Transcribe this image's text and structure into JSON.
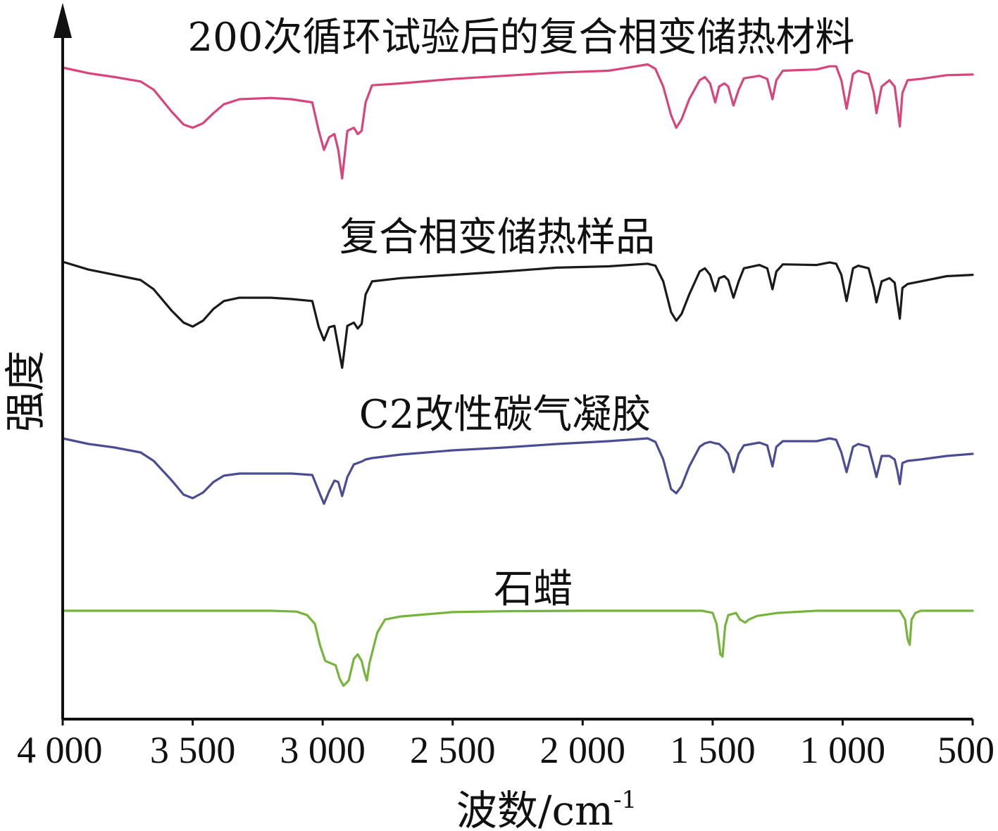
{
  "chart_data": {
    "type": "line",
    "title": "",
    "xlabel": "波数/cm",
    "xlabel_sup": "-1",
    "ylabel": "强度",
    "xlim": [
      4000,
      500
    ],
    "x_reversed": true,
    "xticks": [
      {
        "value": 4000,
        "label": "4 000"
      },
      {
        "value": 3500,
        "label": "3 500"
      },
      {
        "value": 3000,
        "label": "3 000"
      },
      {
        "value": 2500,
        "label": "2 500"
      },
      {
        "value": 2000,
        "label": "2 000"
      },
      {
        "value": 1500,
        "label": "1 500"
      },
      {
        "value": 1000,
        "label": "1 000"
      },
      {
        "value": 500,
        "label": "500"
      }
    ],
    "y_ticks_shown": false,
    "grid": false,
    "legend": "none",
    "series": [
      {
        "name": "200次循环试验后的复合相变储热材料",
        "color": "#d9447a",
        "points": [
          [
            4000,
            0
          ],
          [
            3900,
            -0.09
          ],
          [
            3800,
            -0.15
          ],
          [
            3700,
            -0.22
          ],
          [
            3650,
            -0.35
          ],
          [
            3580,
            -0.7
          ],
          [
            3535,
            -0.9
          ],
          [
            3500,
            -0.95
          ],
          [
            3460,
            -0.88
          ],
          [
            3420,
            -0.72
          ],
          [
            3380,
            -0.58
          ],
          [
            3320,
            -0.5
          ],
          [
            3200,
            -0.48
          ],
          [
            3120,
            -0.5
          ],
          [
            3040,
            -0.55
          ],
          [
            3015,
            -1.0
          ],
          [
            2995,
            -1.3
          ],
          [
            2975,
            -1.1
          ],
          [
            2955,
            -1.05
          ],
          [
            2940,
            -1.3
          ],
          [
            2925,
            -1.75
          ],
          [
            2905,
            -1.0
          ],
          [
            2880,
            -0.95
          ],
          [
            2865,
            -1.05
          ],
          [
            2850,
            -1.0
          ],
          [
            2835,
            -0.55
          ],
          [
            2810,
            -0.28
          ],
          [
            2700,
            -0.25
          ],
          [
            2500,
            -0.18
          ],
          [
            2300,
            -0.13
          ],
          [
            2100,
            -0.08
          ],
          [
            1900,
            -0.05
          ],
          [
            1750,
            0.05
          ],
          [
            1720,
            -0.02
          ],
          [
            1690,
            -0.3
          ],
          [
            1660,
            -0.75
          ],
          [
            1640,
            -0.95
          ],
          [
            1620,
            -0.82
          ],
          [
            1590,
            -0.5
          ],
          [
            1550,
            -0.2
          ],
          [
            1530,
            -0.15
          ],
          [
            1510,
            -0.25
          ],
          [
            1490,
            -0.55
          ],
          [
            1475,
            -0.3
          ],
          [
            1455,
            -0.25
          ],
          [
            1440,
            -0.3
          ],
          [
            1420,
            -0.6
          ],
          [
            1400,
            -0.35
          ],
          [
            1380,
            -0.17
          ],
          [
            1320,
            -0.13
          ],
          [
            1290,
            -0.18
          ],
          [
            1270,
            -0.5
          ],
          [
            1255,
            -0.2
          ],
          [
            1230,
            -0.05
          ],
          [
            1100,
            -0.03
          ],
          [
            1050,
            0.02
          ],
          [
            1025,
            0.02
          ],
          [
            1005,
            -0.2
          ],
          [
            985,
            -0.65
          ],
          [
            960,
            -0.1
          ],
          [
            940,
            -0.05
          ],
          [
            900,
            -0.1
          ],
          [
            880,
            -0.4
          ],
          [
            870,
            -0.72
          ],
          [
            850,
            -0.3
          ],
          [
            820,
            -0.2
          ],
          [
            800,
            -0.3
          ],
          [
            790,
            -0.6
          ],
          [
            780,
            -0.93
          ],
          [
            770,
            -0.4
          ],
          [
            750,
            -0.2
          ],
          [
            700,
            -0.18
          ],
          [
            600,
            -0.12
          ],
          [
            500,
            -0.11
          ]
        ]
      },
      {
        "name": "复合相变储热样品",
        "color": "#1a1a1a",
        "points": [
          [
            4000,
            0
          ],
          [
            3900,
            -0.12
          ],
          [
            3800,
            -0.2
          ],
          [
            3700,
            -0.28
          ],
          [
            3650,
            -0.42
          ],
          [
            3580,
            -0.75
          ],
          [
            3535,
            -0.93
          ],
          [
            3500,
            -0.99
          ],
          [
            3460,
            -0.9
          ],
          [
            3420,
            -0.72
          ],
          [
            3380,
            -0.6
          ],
          [
            3320,
            -0.55
          ],
          [
            3200,
            -0.55
          ],
          [
            3120,
            -0.57
          ],
          [
            3040,
            -0.6
          ],
          [
            3015,
            -1.0
          ],
          [
            2995,
            -1.2
          ],
          [
            2975,
            -1.0
          ],
          [
            2955,
            -0.98
          ],
          [
            2940,
            -1.3
          ],
          [
            2925,
            -1.62
          ],
          [
            2905,
            -0.98
          ],
          [
            2880,
            -0.93
          ],
          [
            2865,
            -1.02
          ],
          [
            2850,
            -0.95
          ],
          [
            2835,
            -0.5
          ],
          [
            2810,
            -0.3
          ],
          [
            2700,
            -0.25
          ],
          [
            2500,
            -0.2
          ],
          [
            2300,
            -0.15
          ],
          [
            2100,
            -0.09
          ],
          [
            1900,
            -0.07
          ],
          [
            1750,
            -0.03
          ],
          [
            1720,
            -0.06
          ],
          [
            1690,
            -0.3
          ],
          [
            1660,
            -0.77
          ],
          [
            1640,
            -0.9
          ],
          [
            1620,
            -0.8
          ],
          [
            1590,
            -0.5
          ],
          [
            1550,
            -0.15
          ],
          [
            1530,
            -0.1
          ],
          [
            1510,
            -0.2
          ],
          [
            1490,
            -0.45
          ],
          [
            1475,
            -0.25
          ],
          [
            1455,
            -0.22
          ],
          [
            1440,
            -0.28
          ],
          [
            1420,
            -0.55
          ],
          [
            1400,
            -0.3
          ],
          [
            1380,
            -0.1
          ],
          [
            1320,
            -0.05
          ],
          [
            1290,
            -0.1
          ],
          [
            1270,
            -0.42
          ],
          [
            1255,
            -0.15
          ],
          [
            1230,
            -0.04
          ],
          [
            1100,
            -0.05
          ],
          [
            1050,
            -0.01
          ],
          [
            1025,
            -0.03
          ],
          [
            1005,
            -0.2
          ],
          [
            985,
            -0.6
          ],
          [
            960,
            -0.1
          ],
          [
            940,
            -0.06
          ],
          [
            900,
            -0.1
          ],
          [
            880,
            -0.4
          ],
          [
            870,
            -0.62
          ],
          [
            850,
            -0.3
          ],
          [
            820,
            -0.25
          ],
          [
            800,
            -0.32
          ],
          [
            790,
            -0.6
          ],
          [
            780,
            -0.87
          ],
          [
            770,
            -0.4
          ],
          [
            750,
            -0.34
          ],
          [
            700,
            -0.3
          ],
          [
            600,
            -0.22
          ],
          [
            500,
            -0.2
          ]
        ]
      },
      {
        "name": "C2改性碳气凝胶",
        "color": "#4a4d94",
        "points": [
          [
            4000,
            0
          ],
          [
            3900,
            -0.08
          ],
          [
            3800,
            -0.13
          ],
          [
            3700,
            -0.2
          ],
          [
            3650,
            -0.32
          ],
          [
            3580,
            -0.6
          ],
          [
            3535,
            -0.8
          ],
          [
            3500,
            -0.85
          ],
          [
            3460,
            -0.77
          ],
          [
            3420,
            -0.62
          ],
          [
            3380,
            -0.53
          ],
          [
            3320,
            -0.5
          ],
          [
            3200,
            -0.5
          ],
          [
            3120,
            -0.5
          ],
          [
            3040,
            -0.52
          ],
          [
            3015,
            -0.75
          ],
          [
            2995,
            -0.93
          ],
          [
            2975,
            -0.75
          ],
          [
            2955,
            -0.6
          ],
          [
            2940,
            -0.62
          ],
          [
            2925,
            -0.82
          ],
          [
            2905,
            -0.55
          ],
          [
            2880,
            -0.37
          ],
          [
            2850,
            -0.33
          ],
          [
            2835,
            -0.3
          ],
          [
            2810,
            -0.28
          ],
          [
            2700,
            -0.23
          ],
          [
            2500,
            -0.17
          ],
          [
            2300,
            -0.13
          ],
          [
            2100,
            -0.08
          ],
          [
            1900,
            -0.04
          ],
          [
            1750,
            0.0
          ],
          [
            1720,
            -0.05
          ],
          [
            1690,
            -0.3
          ],
          [
            1660,
            -0.72
          ],
          [
            1640,
            -0.78
          ],
          [
            1620,
            -0.68
          ],
          [
            1590,
            -0.4
          ],
          [
            1550,
            -0.12
          ],
          [
            1530,
            -0.07
          ],
          [
            1510,
            -0.05
          ],
          [
            1490,
            -0.07
          ],
          [
            1475,
            -0.08
          ],
          [
            1455,
            -0.15
          ],
          [
            1440,
            -0.22
          ],
          [
            1420,
            -0.48
          ],
          [
            1400,
            -0.22
          ],
          [
            1380,
            -0.1
          ],
          [
            1320,
            -0.06
          ],
          [
            1290,
            -0.1
          ],
          [
            1270,
            -0.4
          ],
          [
            1255,
            -0.12
          ],
          [
            1230,
            -0.04
          ],
          [
            1100,
            -0.04
          ],
          [
            1050,
            0.0
          ],
          [
            1025,
            -0.02
          ],
          [
            1005,
            -0.2
          ],
          [
            985,
            -0.48
          ],
          [
            960,
            -0.12
          ],
          [
            940,
            -0.08
          ],
          [
            900,
            -0.12
          ],
          [
            880,
            -0.4
          ],
          [
            870,
            -0.55
          ],
          [
            850,
            -0.25
          ],
          [
            820,
            -0.25
          ],
          [
            800,
            -0.3
          ],
          [
            790,
            -0.45
          ],
          [
            780,
            -0.65
          ],
          [
            770,
            -0.35
          ],
          [
            750,
            -0.32
          ],
          [
            700,
            -0.3
          ],
          [
            600,
            -0.25
          ],
          [
            500,
            -0.22
          ]
        ]
      },
      {
        "name": "石蜡",
        "color": "#76b43b",
        "points": [
          [
            4000,
            0
          ],
          [
            3500,
            0
          ],
          [
            3200,
            0
          ],
          [
            3100,
            -0.02
          ],
          [
            3060,
            -0.1
          ],
          [
            3030,
            -0.3
          ],
          [
            3010,
            -0.8
          ],
          [
            2990,
            -1.15
          ],
          [
            2970,
            -1.2
          ],
          [
            2950,
            -1.25
          ],
          [
            2935,
            -1.55
          ],
          [
            2920,
            -1.72
          ],
          [
            2900,
            -1.6
          ],
          [
            2880,
            -1.1
          ],
          [
            2865,
            -1.0
          ],
          [
            2850,
            -1.15
          ],
          [
            2840,
            -1.4
          ],
          [
            2830,
            -1.6
          ],
          [
            2820,
            -1.2
          ],
          [
            2790,
            -0.5
          ],
          [
            2760,
            -0.2
          ],
          [
            2700,
            -0.13
          ],
          [
            2600,
            -0.08
          ],
          [
            2500,
            -0.03
          ],
          [
            2300,
            -0.01
          ],
          [
            2000,
            0
          ],
          [
            1700,
            0
          ],
          [
            1540,
            0
          ],
          [
            1500,
            -0.05
          ],
          [
            1485,
            -0.3
          ],
          [
            1470,
            -1.0
          ],
          [
            1462,
            -1.05
          ],
          [
            1452,
            -0.35
          ],
          [
            1440,
            -0.1
          ],
          [
            1410,
            -0.05
          ],
          [
            1395,
            -0.2
          ],
          [
            1375,
            -0.27
          ],
          [
            1360,
            -0.2
          ],
          [
            1330,
            -0.12
          ],
          [
            1250,
            -0.05
          ],
          [
            1100,
            0
          ],
          [
            900,
            0
          ],
          [
            780,
            0
          ],
          [
            760,
            -0.2
          ],
          [
            750,
            -0.65
          ],
          [
            742,
            -0.78
          ],
          [
            735,
            -0.2
          ],
          [
            720,
            -0.05
          ],
          [
            700,
            0
          ],
          [
            600,
            0
          ],
          [
            500,
            0
          ]
        ]
      }
    ]
  }
}
